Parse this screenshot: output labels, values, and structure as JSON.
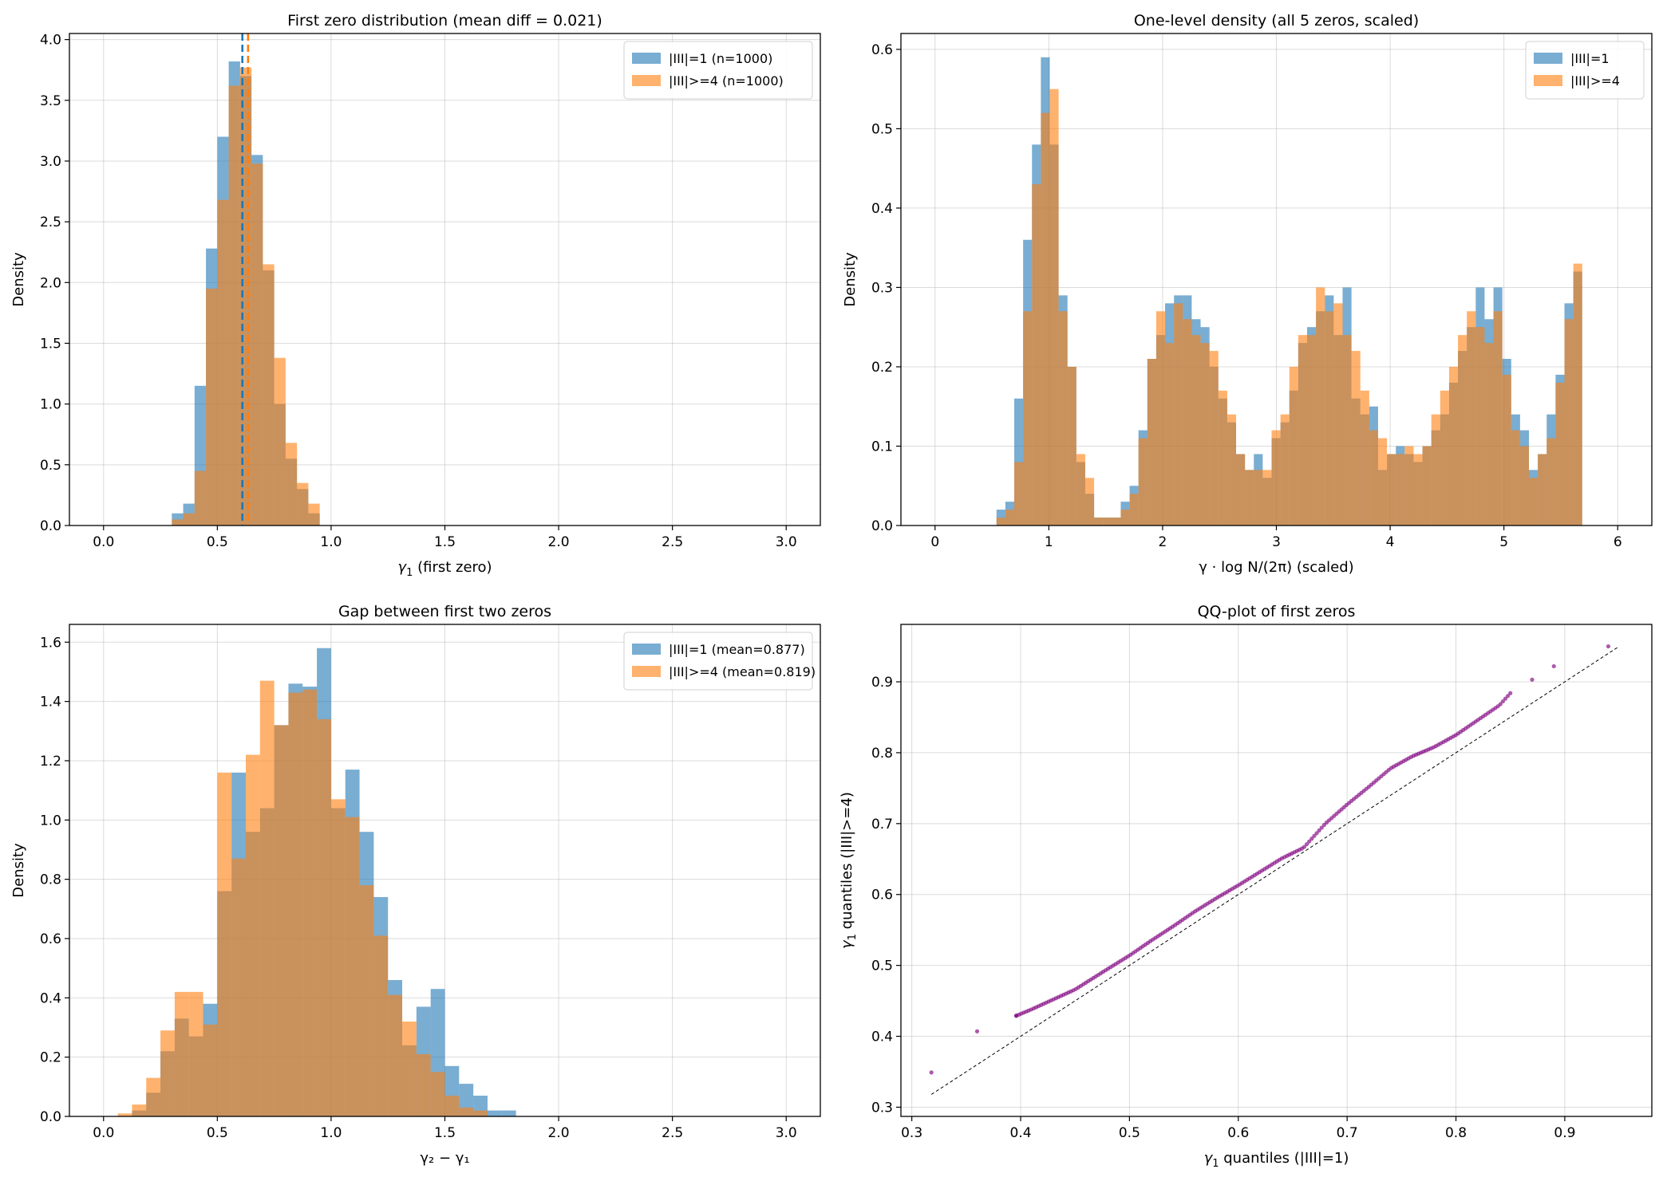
{
  "colors": {
    "series1": "#1f77b4",
    "series2": "#ff7f0e",
    "scatter": "#800080",
    "grid": "#b0b0b0"
  },
  "chart_data": [
    {
      "type": "bar",
      "title": "First zero distribution (mean diff = 0.021)",
      "xlabel_sym": "γ",
      "xlabel_sub": "1",
      "xlabel_rest": " (first zero)",
      "ylabel": "Density",
      "xlim": [
        -0.15,
        3.15
      ],
      "ylim": [
        0,
        4.05
      ],
      "xticks": [
        0,
        0.5,
        1,
        1.5,
        2,
        2.5,
        3
      ],
      "xtick_labels": [
        "0.0",
        "0.5",
        "1.0",
        "1.5",
        "2.0",
        "2.5",
        "3.0"
      ],
      "yticks": [
        0,
        0.5,
        1,
        1.5,
        2,
        2.5,
        3,
        3.5,
        4
      ],
      "ytick_labels": [
        "0.0",
        "0.5",
        "1.0",
        "1.5",
        "2.0",
        "2.5",
        "3.0",
        "3.5",
        "4.0"
      ],
      "bin_start": 0.3,
      "bin_width": 0.05,
      "series": [
        {
          "name": "|III|=1 (n=1000)",
          "color": "#1f77b4",
          "values": [
            0.1,
            0.18,
            1.15,
            2.28,
            3.2,
            3.82,
            3.7,
            3.05,
            2.1,
            1.0,
            0.55,
            0.3,
            0.1
          ]
        },
        {
          "name": "|III|>=4 (n=1000)",
          "color": "#ff7f0e",
          "values": [
            0.05,
            0.1,
            0.45,
            1.95,
            2.68,
            3.62,
            3.77,
            2.98,
            2.15,
            1.38,
            0.68,
            0.35,
            0.18
          ]
        }
      ],
      "vlines": [
        {
          "x": 0.61,
          "color": "#1f77b4"
        },
        {
          "x": 0.635,
          "color": "#ff7f0e"
        }
      ],
      "legend": "top-right"
    },
    {
      "type": "bar",
      "title": "One-level density (all 5 zeros, scaled)",
      "xlabel_full": "γ · log N/(2π) (scaled)",
      "ylabel": "Density",
      "xlim": [
        -0.3,
        6.3
      ],
      "ylim": [
        0,
        0.62
      ],
      "xticks": [
        0,
        1,
        2,
        3,
        4,
        5,
        6
      ],
      "xtick_labels": [
        "0",
        "1",
        "2",
        "3",
        "4",
        "5",
        "6"
      ],
      "yticks": [
        0,
        0.1,
        0.2,
        0.3,
        0.4,
        0.5,
        0.6
      ],
      "ytick_labels": [
        "0.0",
        "0.1",
        "0.2",
        "0.3",
        "0.4",
        "0.5",
        "0.6"
      ],
      "bin_start": 0.54,
      "bin_width": 0.078,
      "series": [
        {
          "name": "|III|=1",
          "color": "#1f77b4",
          "values": [
            0.02,
            0.03,
            0.16,
            0.36,
            0.48,
            0.59,
            0.48,
            0.29,
            0.2,
            0.08,
            0.04,
            0.01,
            0.01,
            0.01,
            0.03,
            0.05,
            0.12,
            0.21,
            0.24,
            0.28,
            0.29,
            0.29,
            0.26,
            0.25,
            0.2,
            0.16,
            0.13,
            0.09,
            0.07,
            0.09,
            0.06,
            0.11,
            0.13,
            0.17,
            0.23,
            0.25,
            0.27,
            0.29,
            0.24,
            0.3,
            0.16,
            0.14,
            0.15,
            0.07,
            0.09,
            0.1,
            0.09,
            0.08,
            0.1,
            0.12,
            0.14,
            0.18,
            0.22,
            0.25,
            0.3,
            0.26,
            0.3,
            0.21,
            0.14,
            0.12,
            0.07,
            0.09,
            0.14,
            0.19,
            0.28,
            0.32
          ]
        },
        {
          "name": "|III|>=4",
          "color": "#ff7f0e",
          "values": [
            0.01,
            0.02,
            0.08,
            0.27,
            0.43,
            0.52,
            0.55,
            0.27,
            0.2,
            0.09,
            0.06,
            0.01,
            0.01,
            0.01,
            0.02,
            0.04,
            0.11,
            0.21,
            0.27,
            0.23,
            0.28,
            0.26,
            0.24,
            0.23,
            0.22,
            0.17,
            0.14,
            0.09,
            0.07,
            0.07,
            0.07,
            0.12,
            0.14,
            0.2,
            0.24,
            0.24,
            0.3,
            0.27,
            0.28,
            0.24,
            0.22,
            0.17,
            0.12,
            0.11,
            0.09,
            0.09,
            0.1,
            0.09,
            0.1,
            0.14,
            0.17,
            0.2,
            0.24,
            0.27,
            0.25,
            0.23,
            0.27,
            0.19,
            0.12,
            0.1,
            0.06,
            0.09,
            0.11,
            0.18,
            0.26,
            0.33
          ]
        }
      ],
      "legend": "top-right"
    },
    {
      "type": "bar",
      "title": "Gap between first two zeros",
      "xlabel_full": "γ₂ − γ₁",
      "ylabel": "Density",
      "xlim": [
        -0.15,
        3.15
      ],
      "ylim": [
        0,
        1.66
      ],
      "xticks": [
        0,
        0.5,
        1,
        1.5,
        2,
        2.5,
        3
      ],
      "xtick_labels": [
        "0.0",
        "0.5",
        "1.0",
        "1.5",
        "2.0",
        "2.5",
        "3.0"
      ],
      "yticks": [
        0,
        0.2,
        0.4,
        0.6,
        0.8,
        1.0,
        1.2,
        1.4,
        1.6
      ],
      "ytick_labels": [
        "0.0",
        "0.2",
        "0.4",
        "0.6",
        "0.8",
        "1.0",
        "1.2",
        "1.4",
        "1.6"
      ],
      "bin_start": 0.0625,
      "bin_width": 0.0625,
      "series": [
        {
          "name": "|III|=1 (mean=0.877)",
          "color": "#1f77b4",
          "values": [
            0.0,
            0.02,
            0.08,
            0.22,
            0.33,
            0.27,
            0.38,
            0.76,
            1.16,
            0.96,
            1.04,
            1.32,
            1.46,
            1.45,
            1.58,
            1.04,
            1.17,
            0.96,
            0.74,
            0.46,
            0.24,
            0.37,
            0.43,
            0.17,
            0.11,
            0.07,
            0.02,
            0.02
          ]
        },
        {
          "name": "|III|>=4 (mean=0.819)",
          "color": "#ff7f0e",
          "values": [
            0.01,
            0.04,
            0.13,
            0.29,
            0.42,
            0.42,
            0.31,
            1.16,
            0.87,
            1.22,
            1.47,
            1.32,
            1.43,
            1.44,
            1.34,
            1.07,
            1.01,
            0.78,
            0.61,
            0.41,
            0.32,
            0.21,
            0.15,
            0.07,
            0.03,
            0.02,
            0.0,
            0.0
          ]
        }
      ],
      "legend": "top-right"
    },
    {
      "type": "scatter",
      "title": "QQ-plot of first zeros",
      "xlabel_sym": "γ",
      "xlabel_sub": "1",
      "xlabel_rest": " quantiles (|III|=1)",
      "ylabel_sym": "γ",
      "ylabel_sub": "1",
      "ylabel_rest": " quantiles (|III|>=4)",
      "xlim": [
        0.29,
        0.98
      ],
      "ylim": [
        0.287,
        0.981
      ],
      "xticks": [
        0.3,
        0.4,
        0.5,
        0.6,
        0.7,
        0.8,
        0.9
      ],
      "xtick_labels": [
        "0.3",
        "0.4",
        "0.5",
        "0.6",
        "0.7",
        "0.8",
        "0.9"
      ],
      "yticks": [
        0.3,
        0.4,
        0.5,
        0.6,
        0.7,
        0.8,
        0.9
      ],
      "ytick_labels": [
        "0.3",
        "0.4",
        "0.5",
        "0.6",
        "0.7",
        "0.8",
        "0.9"
      ],
      "reference_line": [
        [
          0.318,
          0.318
        ],
        [
          0.95,
          0.95
        ]
      ],
      "anchors": [
        [
          0.318,
          0.349
        ],
        [
          0.36,
          0.407
        ],
        [
          0.396,
          0.429
        ],
        [
          0.41,
          0.438
        ],
        [
          0.43,
          0.452
        ],
        [
          0.45,
          0.466
        ],
        [
          0.48,
          0.495
        ],
        [
          0.5,
          0.514
        ],
        [
          0.52,
          0.535
        ],
        [
          0.54,
          0.555
        ],
        [
          0.56,
          0.576
        ],
        [
          0.58,
          0.595
        ],
        [
          0.6,
          0.613
        ],
        [
          0.62,
          0.632
        ],
        [
          0.64,
          0.651
        ],
        [
          0.66,
          0.666
        ],
        [
          0.68,
          0.7
        ],
        [
          0.7,
          0.727
        ],
        [
          0.72,
          0.752
        ],
        [
          0.74,
          0.778
        ],
        [
          0.76,
          0.795
        ],
        [
          0.78,
          0.808
        ],
        [
          0.8,
          0.825
        ],
        [
          0.82,
          0.846
        ],
        [
          0.84,
          0.867
        ],
        [
          0.85,
          0.884
        ],
        [
          0.87,
          0.903
        ],
        [
          0.89,
          0.922
        ],
        [
          0.94,
          0.95
        ]
      ],
      "n_points": 200
    }
  ]
}
